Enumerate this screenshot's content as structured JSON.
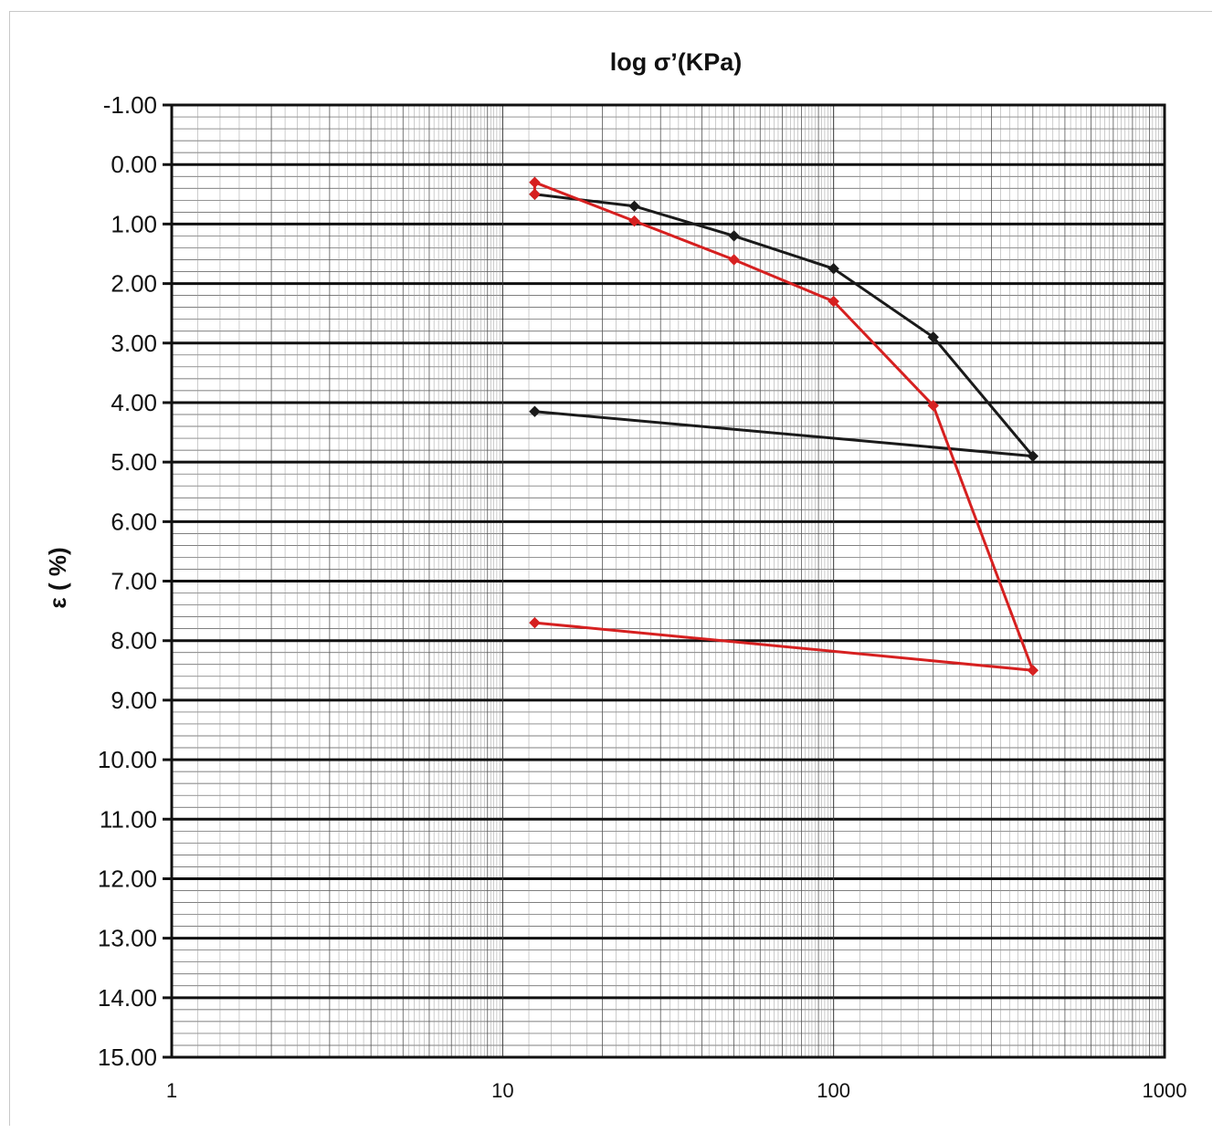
{
  "chart_data": {
    "type": "line",
    "title": "log σ’(KPa)",
    "xlabel": "",
    "ylabel": "ε ( %)",
    "x_scale": "log",
    "xlim": [
      1,
      1000
    ],
    "ylim": [
      -1.0,
      15.0
    ],
    "y_inverted": true,
    "grid": true,
    "x_tick_labels": [
      "1",
      "10",
      "100",
      "1000"
    ],
    "y_tick_labels": [
      "-1.00",
      "0.00",
      "1.00",
      "2.00",
      "3.00",
      "4.00",
      "5.00",
      "6.00",
      "7.00",
      "8.00",
      "9.00",
      "10.00",
      "11.00",
      "12.00",
      "13.00",
      "14.00",
      "15.00"
    ],
    "series": [
      {
        "color": "#1a1a1a",
        "x": [
          12.5,
          25,
          50,
          100,
          200,
          400,
          12.5
        ],
        "y": [
          0.5,
          0.7,
          1.2,
          1.75,
          2.9,
          4.9,
          4.15
        ]
      },
      {
        "color": "#d62020",
        "x": [
          12.5,
          12.5,
          25,
          50,
          100,
          200,
          400,
          12.5
        ],
        "y": [
          0.5,
          0.3,
          0.95,
          1.6,
          2.3,
          4.05,
          8.5,
          7.7
        ]
      }
    ]
  }
}
